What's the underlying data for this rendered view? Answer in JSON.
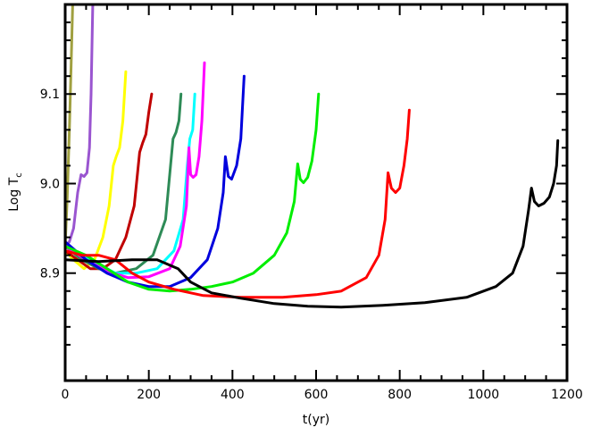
{
  "chart_data": {
    "type": "line",
    "title": "",
    "xlabel": "t(yr)",
    "ylabel_main": "Log T",
    "ylabel_sub": "c",
    "xlim": [
      0,
      1200
    ],
    "ylim": [
      8.78,
      9.2
    ],
    "grid": false,
    "x_ticks": [
      0,
      200,
      400,
      600,
      800,
      1000,
      1200
    ],
    "x_tick_labels": [
      "0",
      "200",
      "400",
      "600",
      "800",
      "1000",
      "1200"
    ],
    "y_ticks": [
      8.9,
      9.0,
      9.1
    ],
    "y_tick_labels": [
      "8.9",
      "9.0",
      "9.1"
    ],
    "series": [
      {
        "color": "#a0a040",
        "points": [
          [
            0,
            8.93
          ],
          [
            5,
            8.985
          ],
          [
            10,
            9.06
          ],
          [
            14,
            9.13
          ],
          [
            18,
            9.2
          ]
        ]
      },
      {
        "color": "#9a55d0",
        "points": [
          [
            0,
            8.93
          ],
          [
            10,
            8.935
          ],
          [
            20,
            8.95
          ],
          [
            30,
            8.99
          ],
          [
            38,
            9.01
          ],
          [
            45,
            9.008
          ],
          [
            52,
            9.012
          ],
          [
            58,
            9.04
          ],
          [
            62,
            9.1
          ],
          [
            66,
            9.2
          ]
        ]
      },
      {
        "color": "#ffff00",
        "points": [
          [
            0,
            8.925
          ],
          [
            20,
            8.915
          ],
          [
            45,
            8.905
          ],
          [
            70,
            8.915
          ],
          [
            90,
            8.94
          ],
          [
            105,
            8.975
          ],
          [
            115,
            9.02
          ],
          [
            122,
            9.03
          ],
          [
            130,
            9.04
          ],
          [
            138,
            9.07
          ],
          [
            145,
            9.125
          ]
        ]
      },
      {
        "color": "#c00000",
        "points": [
          [
            0,
            8.925
          ],
          [
            30,
            8.915
          ],
          [
            60,
            8.905
          ],
          [
            90,
            8.905
          ],
          [
            120,
            8.915
          ],
          [
            145,
            8.94
          ],
          [
            165,
            8.975
          ],
          [
            178,
            9.035
          ],
          [
            185,
            9.045
          ],
          [
            193,
            9.055
          ],
          [
            200,
            9.08
          ],
          [
            207,
            9.1
          ]
        ]
      },
      {
        "color": "#2e8b57",
        "points": [
          [
            0,
            8.93
          ],
          [
            40,
            8.915
          ],
          [
            80,
            8.905
          ],
          [
            120,
            8.9
          ],
          [
            170,
            8.905
          ],
          [
            210,
            8.92
          ],
          [
            240,
            8.96
          ],
          [
            252,
            9.02
          ],
          [
            258,
            9.05
          ],
          [
            265,
            9.057
          ],
          [
            272,
            9.07
          ],
          [
            277,
            9.1
          ]
        ]
      },
      {
        "color": "#00ffff",
        "points": [
          [
            0,
            8.93
          ],
          [
            40,
            8.92
          ],
          [
            80,
            8.91
          ],
          [
            120,
            8.9
          ],
          [
            170,
            8.9
          ],
          [
            220,
            8.905
          ],
          [
            260,
            8.925
          ],
          [
            282,
            8.96
          ],
          [
            292,
            9.02
          ],
          [
            298,
            9.05
          ],
          [
            305,
            9.06
          ],
          [
            310,
            9.1
          ]
        ]
      },
      {
        "color": "#ff00ff",
        "points": [
          [
            0,
            8.93
          ],
          [
            50,
            8.915
          ],
          [
            100,
            8.902
          ],
          [
            150,
            8.895
          ],
          [
            200,
            8.896
          ],
          [
            250,
            8.905
          ],
          [
            275,
            8.93
          ],
          [
            290,
            8.975
          ],
          [
            296,
            9.04
          ],
          [
            300,
            9.01
          ],
          [
            306,
            9.007
          ],
          [
            313,
            9.01
          ],
          [
            320,
            9.03
          ],
          [
            327,
            9.07
          ],
          [
            333,
            9.135
          ]
        ]
      },
      {
        "color": "#0000dd",
        "points": [
          [
            0,
            8.935
          ],
          [
            50,
            8.915
          ],
          [
            100,
            8.9
          ],
          [
            150,
            8.89
          ],
          [
            200,
            8.885
          ],
          [
            250,
            8.885
          ],
          [
            300,
            8.895
          ],
          [
            340,
            8.915
          ],
          [
            365,
            8.95
          ],
          [
            378,
            8.99
          ],
          [
            383,
            9.03
          ],
          [
            390,
            9.008
          ],
          [
            398,
            9.005
          ],
          [
            410,
            9.02
          ],
          [
            420,
            9.05
          ],
          [
            428,
            9.12
          ]
        ]
      },
      {
        "color": "#00ee00",
        "points": [
          [
            0,
            8.93
          ],
          [
            50,
            8.92
          ],
          [
            100,
            8.905
          ],
          [
            150,
            8.89
          ],
          [
            200,
            8.882
          ],
          [
            250,
            8.88
          ],
          [
            300,
            8.882
          ],
          [
            350,
            8.885
          ],
          [
            400,
            8.89
          ],
          [
            450,
            8.9
          ],
          [
            500,
            8.92
          ],
          [
            530,
            8.945
          ],
          [
            548,
            8.98
          ],
          [
            556,
            9.022
          ],
          [
            562,
            9.005
          ],
          [
            570,
            9.001
          ],
          [
            580,
            9.007
          ],
          [
            590,
            9.025
          ],
          [
            600,
            9.06
          ],
          [
            606,
            9.1
          ]
        ]
      },
      {
        "color": "#ff0000",
        "points": [
          [
            0,
            8.925
          ],
          [
            40,
            8.92
          ],
          [
            80,
            8.92
          ],
          [
            120,
            8.915
          ],
          [
            160,
            8.9
          ],
          [
            200,
            8.89
          ],
          [
            260,
            8.882
          ],
          [
            330,
            8.875
          ],
          [
            420,
            8.873
          ],
          [
            520,
            8.873
          ],
          [
            600,
            8.876
          ],
          [
            660,
            8.88
          ],
          [
            720,
            8.895
          ],
          [
            750,
            8.92
          ],
          [
            765,
            8.96
          ],
          [
            772,
            9.012
          ],
          [
            780,
            8.995
          ],
          [
            790,
            8.99
          ],
          [
            800,
            8.995
          ],
          [
            810,
            9.02
          ],
          [
            818,
            9.05
          ],
          [
            823,
            9.082
          ]
        ]
      },
      {
        "color": "#000000",
        "points": [
          [
            0,
            8.915
          ],
          [
            80,
            8.913
          ],
          [
            160,
            8.915
          ],
          [
            220,
            8.915
          ],
          [
            270,
            8.905
          ],
          [
            300,
            8.89
          ],
          [
            350,
            8.878
          ],
          [
            420,
            8.872
          ],
          [
            500,
            8.866
          ],
          [
            580,
            8.863
          ],
          [
            660,
            8.862
          ],
          [
            760,
            8.864
          ],
          [
            860,
            8.867
          ],
          [
            960,
            8.873
          ],
          [
            1030,
            8.885
          ],
          [
            1070,
            8.9
          ],
          [
            1095,
            8.93
          ],
          [
            1108,
            8.97
          ],
          [
            1115,
            8.995
          ],
          [
            1122,
            8.98
          ],
          [
            1132,
            8.975
          ],
          [
            1145,
            8.978
          ],
          [
            1158,
            8.985
          ],
          [
            1168,
            9.0
          ],
          [
            1175,
            9.02
          ],
          [
            1178,
            9.048
          ]
        ]
      }
    ]
  }
}
